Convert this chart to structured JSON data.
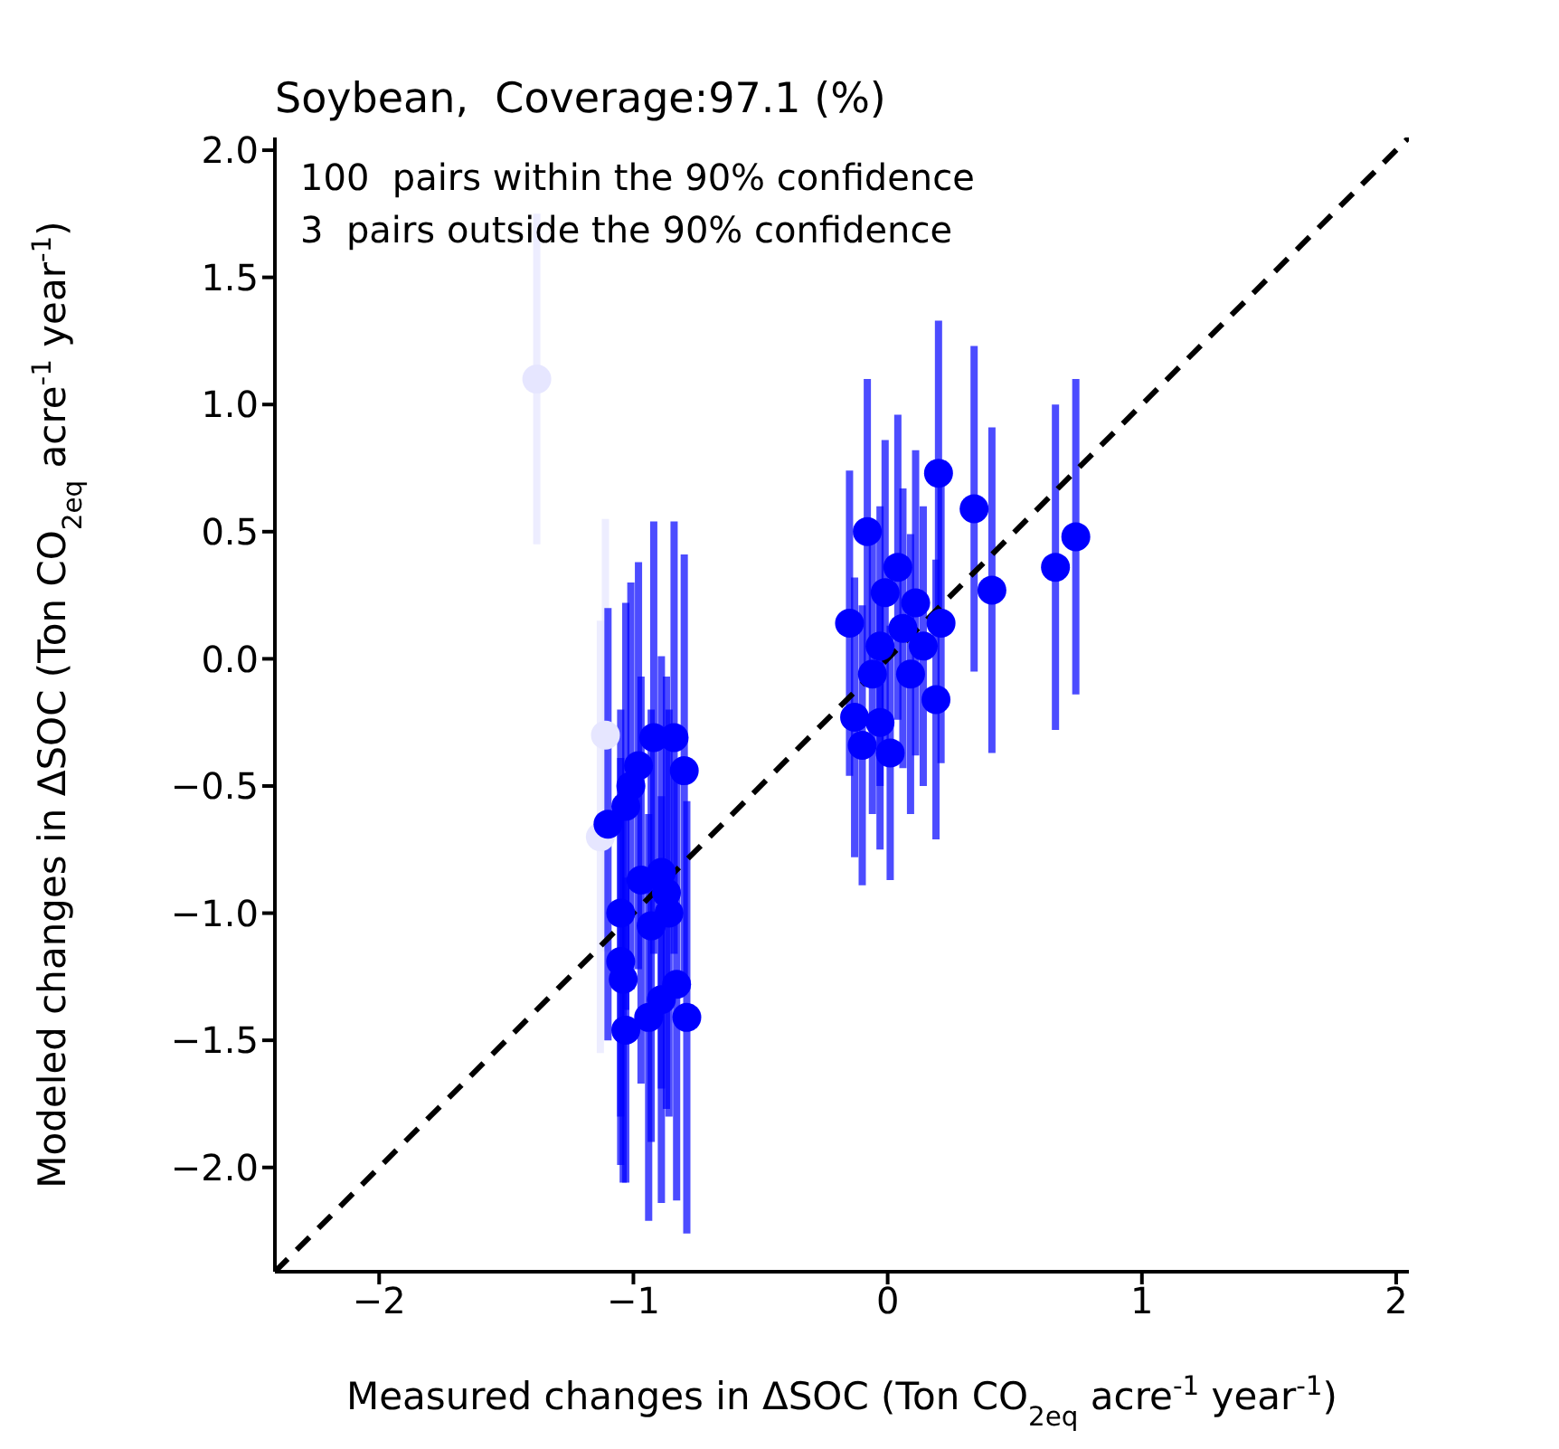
{
  "chart_data": {
    "type": "scatter",
    "title": "Soybean,  Coverage:97.1 (%)",
    "xlabel": "Measured changes in ΔSOC (Ton CO$_{2eq}$ acre$^{-1}$ year$^{-1}$)",
    "ylabel": "Modeled changes in ΔSOC (Ton CO$_{2eq}$ acre$^{-1}$ year$^{-1}$)",
    "annotations": [
      "100  pairs within the 90% confidence",
      "3  pairs outside the 90% confidence"
    ],
    "xlim": [
      -2.41,
      2.05
    ],
    "ylim": [
      -2.41,
      2.05
    ],
    "xticks": [
      {
        "value": -2,
        "label": "−2"
      },
      {
        "value": -1,
        "label": "−1"
      },
      0,
      1,
      2
    ],
    "yticks": [
      {
        "value": -2,
        "label": "−2.0"
      },
      {
        "value": -1.5,
        "label": "−1.5"
      },
      {
        "value": -1,
        "label": "−1.0"
      },
      {
        "value": -0.5,
        "label": "−0.5"
      },
      {
        "value": 0,
        "label": "0.0"
      },
      {
        "value": 0.5,
        "label": "0.5"
      },
      {
        "value": 1,
        "label": "1.0"
      },
      {
        "value": 1.5,
        "label": "1.5"
      },
      {
        "value": 2,
        "label": "2.0"
      }
    ],
    "marker": "circle",
    "series": [
      {
        "color": "#e6e6ff",
        "x": [
          -1.38,
          -1.11,
          -1.13
        ],
        "values": [
          1.1,
          -0.3,
          -0.7
        ],
        "errors": [
          0.65,
          0.85,
          0.85
        ]
      },
      {
        "color": "#0000ff",
        "x": [
          -1.1,
          -0.92,
          -0.84,
          -0.98,
          -0.8,
          -1.01,
          -1.03,
          -0.97,
          -0.89,
          -0.87,
          -1.05,
          -0.93,
          -0.86,
          -1.05,
          -1.04,
          -0.83,
          -0.89,
          -0.94,
          -0.79,
          -1.03,
          0.2,
          0.34,
          0.41,
          -0.15,
          0.21,
          0.19,
          -0.13,
          -0.08,
          0.04,
          -0.03,
          0.09,
          -0.1,
          0.01,
          0.11,
          -0.06,
          0.06,
          -0.01,
          -0.03,
          0.14,
          0.66,
          0.74
        ],
        "values": [
          -0.65,
          -0.31,
          -0.31,
          -0.42,
          -0.44,
          -0.5,
          -0.58,
          -0.87,
          -0.84,
          -0.92,
          -1.0,
          -1.05,
          -1.0,
          -1.19,
          -1.26,
          -1.28,
          -1.34,
          -1.41,
          -1.41,
          -1.46,
          0.73,
          0.59,
          0.27,
          0.14,
          0.14,
          -0.16,
          -0.23,
          0.5,
          0.36,
          0.05,
          -0.06,
          -0.34,
          -0.37,
          0.22,
          -0.06,
          0.12,
          0.26,
          -0.25,
          0.05,
          0.36,
          0.48
        ],
        "errors": [
          0.85,
          0.85,
          0.85,
          0.8,
          0.85,
          0.8,
          0.8,
          0.8,
          0.85,
          0.85,
          0.8,
          0.85,
          0.8,
          0.8,
          0.8,
          0.85,
          0.8,
          0.8,
          0.85,
          0.6,
          0.6,
          0.64,
          0.64,
          0.6,
          0.55,
          0.55,
          0.55,
          0.6,
          0.6,
          0.55,
          0.55,
          0.55,
          0.5,
          0.6,
          0.55,
          0.55,
          0.6,
          0.5,
          0.55,
          0.64,
          0.62
        ]
      },
      {
        "type": "line",
        "color": "#000000",
        "line_style": "dashed",
        "marker": "none",
        "x": [
          -2.41,
          2.05
        ],
        "values": [
          -2.41,
          2.05
        ]
      }
    ]
  }
}
